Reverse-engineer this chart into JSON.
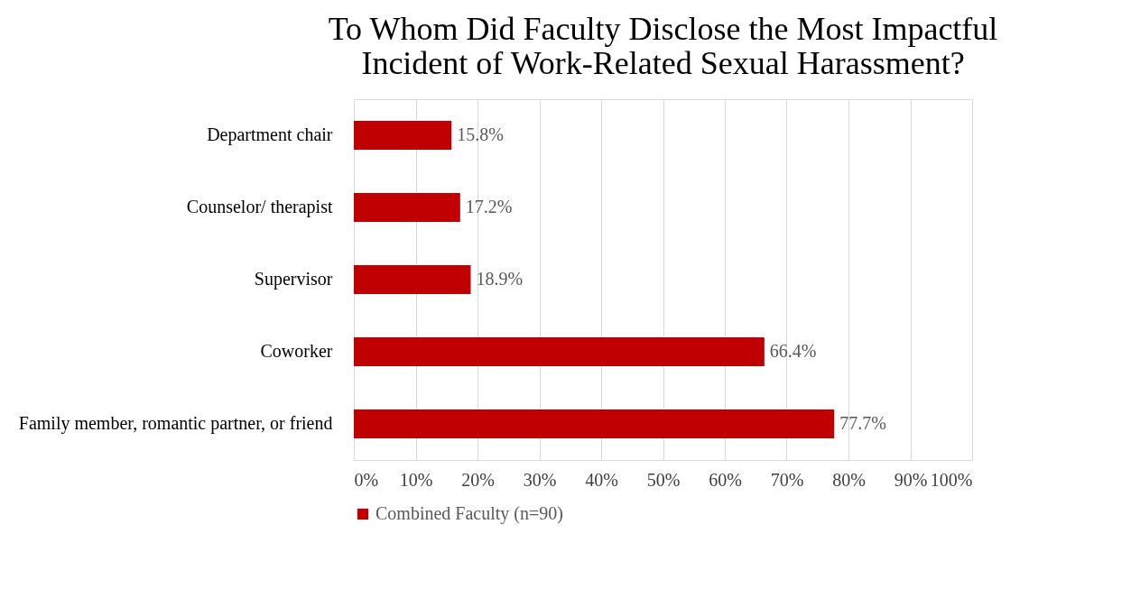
{
  "chart_data": {
    "type": "bar",
    "orientation": "horizontal",
    "title": "To Whom Did Faculty Disclose the Most Impactful\nIncident of Work-Related Sexual Harassment?",
    "categories": [
      "Department chair",
      "Counselor/ therapist",
      "Supervisor",
      "Coworker",
      "Family member, romantic partner, or friend"
    ],
    "series": [
      {
        "name": "Combined Faculty (n=90)",
        "color": "#c00000",
        "values": [
          15.8,
          17.2,
          18.9,
          66.4,
          77.7
        ],
        "value_labels": [
          "15.8%",
          "17.2%",
          "18.9%",
          "66.4%",
          "77.7%"
        ]
      }
    ],
    "xlim": [
      0,
      100
    ],
    "xticks": [
      {
        "value": 0,
        "label": "0%"
      },
      {
        "value": 10,
        "label": "10%"
      },
      {
        "value": 20,
        "label": "20%"
      },
      {
        "value": 30,
        "label": "30%"
      },
      {
        "value": 40,
        "label": "40%"
      },
      {
        "value": 50,
        "label": "50%"
      },
      {
        "value": 60,
        "label": "60%"
      },
      {
        "value": 70,
        "label": "70%"
      },
      {
        "value": 80,
        "label": "80%"
      },
      {
        "value": 90,
        "label": "90%"
      },
      {
        "value": 100,
        "label": "100%"
      }
    ],
    "grid": "x",
    "legend": "bottom"
  }
}
